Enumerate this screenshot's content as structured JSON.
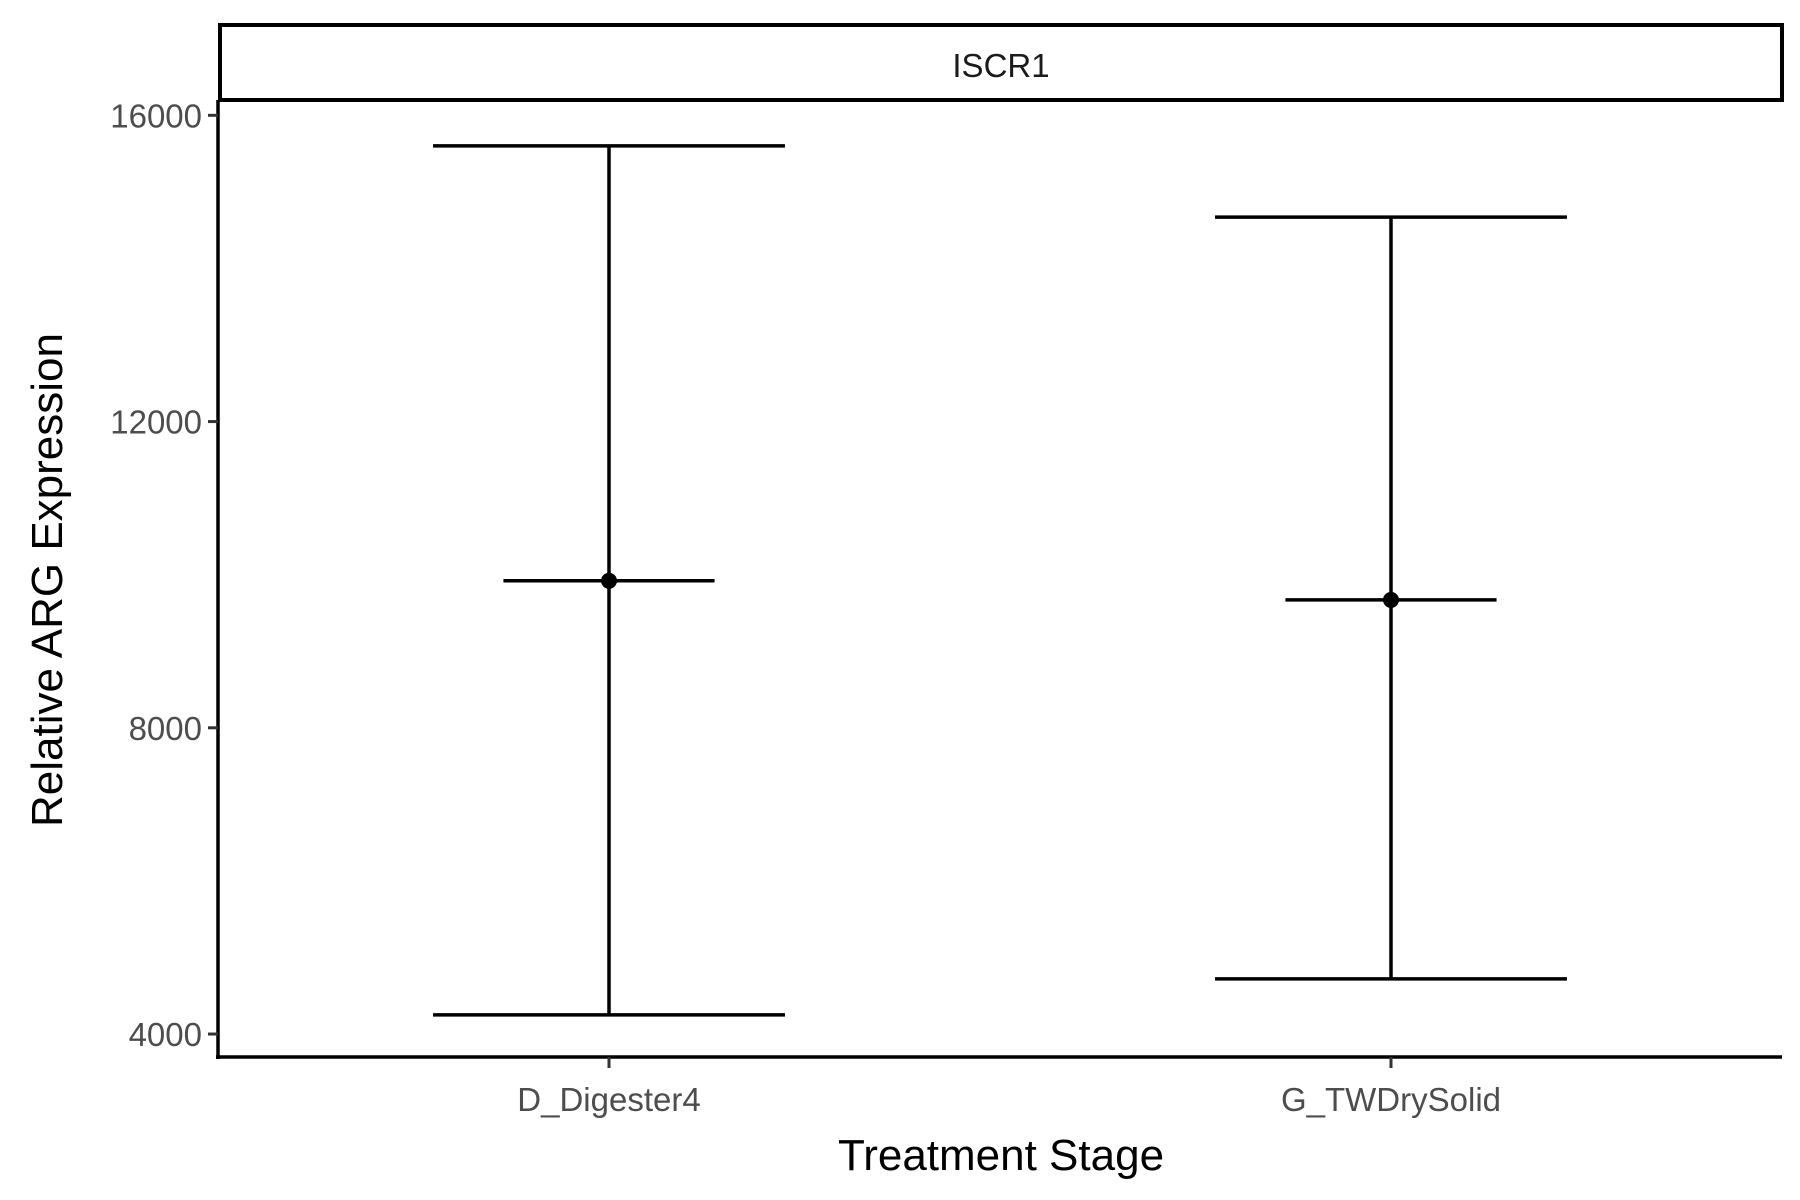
{
  "chart_data": {
    "type": "scatter",
    "panel_title": "ISCR1",
    "xlabel": "Treatment Stage",
    "ylabel": "Relative ARG Expression",
    "categories": [
      "D_Digester4",
      "G_TWDrySolid"
    ],
    "series": [
      {
        "points": [
          {
            "category": "D_Digester4",
            "mean": 9920,
            "lower": 4250,
            "upper": 15600,
            "mean_bar_low": 9320,
            "mean_bar_high": 10520
          },
          {
            "category": "G_TWDrySolid",
            "mean": 9670,
            "lower": 4720,
            "upper": 14670,
            "mean_bar_low": 9070,
            "mean_bar_high": 10270
          }
        ]
      }
    ],
    "yticks": [
      "4000",
      "8000",
      "12000",
      "16000"
    ],
    "ytick_values": [
      4000,
      8000,
      12000,
      16000
    ],
    "ylim": [
      3700,
      16200
    ],
    "grid": false,
    "legend": "none",
    "colors": {
      "ink": "#000000",
      "tick_text": "#4d4d4d",
      "strip_fill": "#ffffff"
    }
  }
}
